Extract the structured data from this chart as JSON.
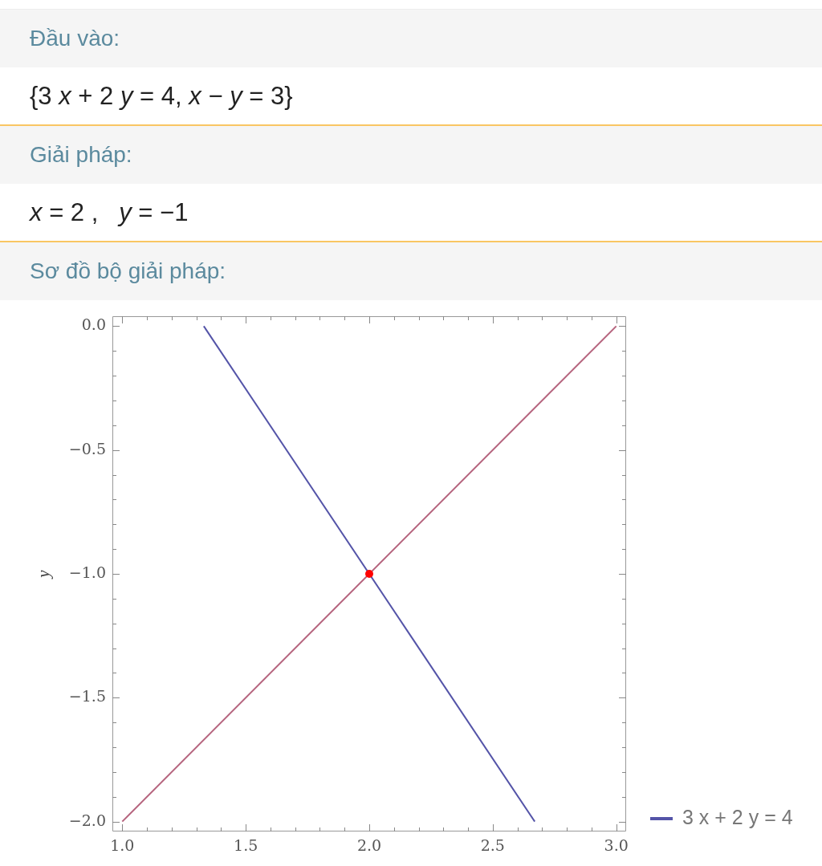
{
  "chart_data": {
    "type": "line",
    "title": "Sơ đồ bộ giải pháp:",
    "annotations": [
      "Đầu vào:",
      "{3 x + 2 y = 4, x − y = 3}",
      "Giải pháp:",
      "x = 2 ,   y = −1"
    ],
    "ylabel": "y",
    "xlim": [
      0.96,
      3.04
    ],
    "ylim": [
      -2.04,
      0.04
    ],
    "xticks": [
      {
        "value": 1,
        "label": "1.0"
      },
      {
        "value": 1.1,
        "label": null
      },
      {
        "value": 1.2,
        "label": null
      },
      {
        "value": 1.3,
        "label": null
      },
      {
        "value": 1.4,
        "label": null
      },
      {
        "value": 1.5,
        "label": "1.5"
      },
      {
        "value": 1.6,
        "label": null
      },
      {
        "value": 1.7,
        "label": null
      },
      {
        "value": 1.8,
        "label": null
      },
      {
        "value": 1.9,
        "label": null
      },
      {
        "value": 2,
        "label": "2.0"
      },
      {
        "value": 2.1,
        "label": null
      },
      {
        "value": 2.2,
        "label": null
      },
      {
        "value": 2.3,
        "label": null
      },
      {
        "value": 2.4,
        "label": null
      },
      {
        "value": 2.5,
        "label": "2.5"
      },
      {
        "value": 2.6,
        "label": null
      },
      {
        "value": 2.7,
        "label": null
      },
      {
        "value": 2.8,
        "label": null
      },
      {
        "value": 2.9,
        "label": null
      },
      {
        "value": 3,
        "label": "3.0"
      }
    ],
    "yticks": [
      {
        "value": -2,
        "label": "−2.0"
      },
      {
        "value": -1.9,
        "label": null
      },
      {
        "value": -1.8,
        "label": null
      },
      {
        "value": -1.7,
        "label": null
      },
      {
        "value": -1.6,
        "label": null
      },
      {
        "value": -1.5,
        "label": "−1.5"
      },
      {
        "value": -1.4,
        "label": null
      },
      {
        "value": -1.3,
        "label": null
      },
      {
        "value": -1.2,
        "label": null
      },
      {
        "value": -1.1,
        "label": null
      },
      {
        "value": -1,
        "label": "−1.0"
      },
      {
        "value": -0.9,
        "label": null
      },
      {
        "value": -0.8,
        "label": null
      },
      {
        "value": -0.7,
        "label": null
      },
      {
        "value": -0.6,
        "label": null
      },
      {
        "value": -0.5,
        "label": "−0.5"
      },
      {
        "value": -0.4,
        "label": null
      },
      {
        "value": -0.3,
        "label": null
      },
      {
        "value": -0.2,
        "label": null
      },
      {
        "value": -0.1,
        "label": null
      },
      {
        "value": 0,
        "label": "0.0"
      }
    ],
    "legend": "bottom right",
    "series": [
      {
        "name": "3 x + 2 y = 4",
        "color": "#5454a8",
        "x": [
          1.33,
          2.67
        ],
        "values": [
          0,
          -2
        ]
      },
      {
        "color": "#b5637d",
        "x": [
          1,
          3
        ],
        "values": [
          -2,
          0
        ]
      },
      {
        "type": "scatter",
        "color": "#ff0000",
        "marker": "circle",
        "x": [
          2
        ],
        "values": [
          -1
        ]
      }
    ]
  }
}
